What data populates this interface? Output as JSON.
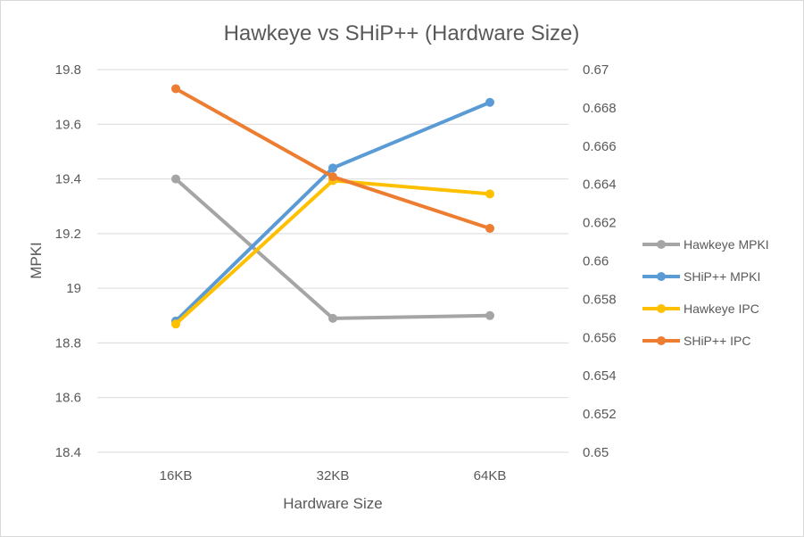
{
  "chart_data": {
    "type": "line",
    "title": "Hawkeye vs SHiP++ (Hardware Size)",
    "xlabel": "Hardware Size",
    "ylabel": "MPKI",
    "y2label": "",
    "categories": [
      "16KB",
      "32KB",
      "64KB"
    ],
    "ylim": [
      18.4,
      19.8
    ],
    "yticks": [
      "18.4",
      "18.6",
      "18.8",
      "19",
      "19.2",
      "19.4",
      "19.6",
      "19.8"
    ],
    "y2lim": [
      0.65,
      0.67
    ],
    "y2ticks": [
      "0.65",
      "0.652",
      "0.654",
      "0.656",
      "0.658",
      "0.66",
      "0.662",
      "0.664",
      "0.666",
      "0.668",
      "0.67"
    ],
    "grid": true,
    "legend_position": "right",
    "series": [
      {
        "name": "Hawkeye MPKI",
        "axis": "left",
        "color": "#a5a5a5",
        "values": [
          19.4,
          18.89,
          18.9
        ]
      },
      {
        "name": "SHiP++ MPKI",
        "axis": "left",
        "color": "#5b9bd5",
        "values": [
          18.88,
          19.44,
          19.68
        ]
      },
      {
        "name": "Hawkeye IPC",
        "axis": "right",
        "color": "#ffc000",
        "values": [
          0.6567,
          0.6642,
          0.6635
        ]
      },
      {
        "name": "SHiP++ IPC",
        "axis": "right",
        "color": "#ed7d31",
        "values": [
          0.669,
          0.6644,
          0.6617
        ]
      }
    ]
  }
}
